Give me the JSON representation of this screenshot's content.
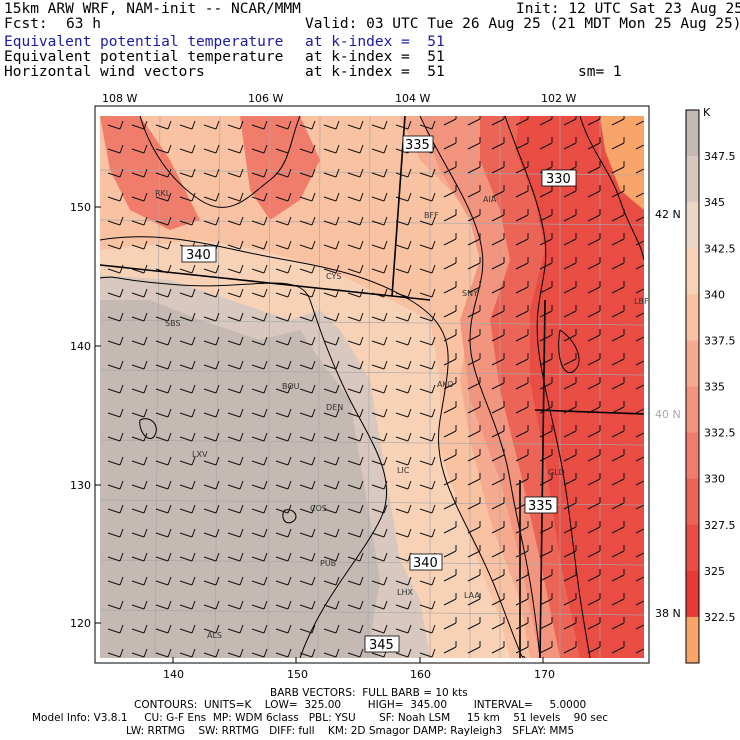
{
  "header": {
    "model": "15km ARW WRF, NAM-init -- NCAR/MMM",
    "init": "Init: 12 UTC Sat 23 Aug 25",
    "fcst_label": "Fcst:",
    "fcst_value": "63 h",
    "valid": "Valid: 03 UTC Tue 26 Aug 25 (21 MDT Mon 25 Aug 25)",
    "rows": [
      {
        "name": "Equivalent potential temperature",
        "level": "at k-index =  51",
        "highlight": true
      },
      {
        "name": "Equivalent potential temperature",
        "level": "at k-index =  51",
        "highlight": false
      },
      {
        "name": "Horizontal wind vectors",
        "level": "at k-index =  51",
        "highlight": false
      }
    ],
    "smoothing": "sm= 1"
  },
  "map": {
    "top_lon_labels": [
      "108 W",
      "106 W",
      "104 W",
      "102 W"
    ],
    "right_lat_labels": [
      "42 N",
      "40 N",
      "38 N"
    ],
    "left_y_ticks": [
      "150",
      "140",
      "130",
      "120"
    ],
    "bottom_x_ticks": [
      "140",
      "150",
      "160",
      "170"
    ],
    "contour_labels": [
      "335",
      "330",
      "340",
      "335",
      "340",
      "345"
    ],
    "cities": [
      "RKL",
      "BFF",
      "AIA",
      "CYS",
      "SNY",
      "LBF",
      "SBS",
      "BOU",
      "DEN",
      "AKO",
      "LXV",
      "LIC",
      "GLD",
      "COS",
      "PUB",
      "LHX",
      "LAA",
      "ALS"
    ],
    "colors": {
      "c_lt_peach": "#f9c6a6",
      "c_peach": "#f5a98c",
      "c_salmon": "#f18a75",
      "c_red": "#ec5e4e",
      "c_deep_red": "#e63c35",
      "c_grey": "#c4b9b3",
      "c_orange": "#f9a56a",
      "grid": "#b0b0b0"
    }
  },
  "colorbar": {
    "unit": "K",
    "labels": [
      "347.5",
      "345",
      "342.5",
      "340",
      "337.5",
      "335",
      "332.5",
      "330",
      "327.5",
      "325",
      "322.5"
    ],
    "colors": [
      "#c4b9b3",
      "#d8c8bf",
      "#ecd6c6",
      "#f8d2b6",
      "#f9c2a2",
      "#f6ab90",
      "#f3957e",
      "#f07d6c",
      "#ec6456",
      "#e84c43",
      "#e63a35",
      "#f9a56a"
    ]
  },
  "footer": {
    "barb": "BARB VECTORS:  FULL BARB = 10 kts",
    "contours_line": "CONTOURS:  UNITS=K    LOW=  325.00        HIGH=  345.00        INTERVAL=     5.0000",
    "model_info": "Model Info: V3.8.1     CU: G-F Ens  MP: WDM 6class   PBL: YSU       SF: Noah LSM     15 km    51 levels    90 sec",
    "physics": "LW: RRTMG    SW: RRTMG   DIFF: full    KM: 2D Smagor DAMP: Rayleigh3   SFLAY: MM5"
  }
}
